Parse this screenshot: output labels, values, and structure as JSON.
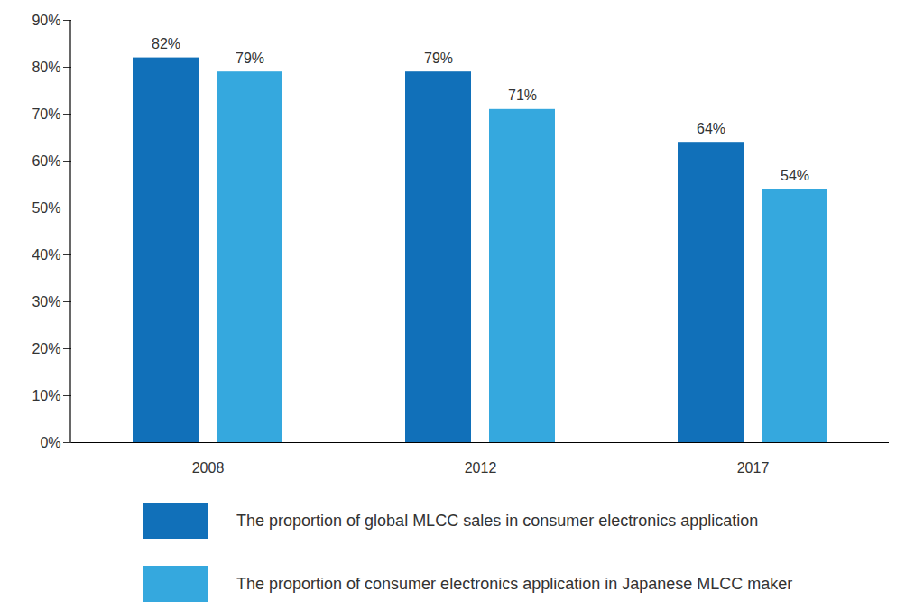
{
  "chart_data": {
    "type": "bar",
    "categories": [
      "2008",
      "2012",
      "2017"
    ],
    "series": [
      {
        "name": "The proportion of global MLCC sales in consumer electronics application",
        "color": "#1170b9",
        "values": [
          82,
          79,
          64
        ],
        "value_labels": [
          "82%",
          "79%",
          "64%"
        ]
      },
      {
        "name": "The proportion of consumer electronics application in Japanese MLCC maker",
        "color": "#35a8de",
        "values": [
          79,
          71,
          54
        ],
        "value_labels": [
          "79%",
          "71%",
          "54%"
        ]
      }
    ],
    "ylim": [
      0,
      90
    ],
    "yticks": [
      {
        "value": 0,
        "label": "0%"
      },
      {
        "value": 10,
        "label": "10%"
      },
      {
        "value": 20,
        "label": "20%"
      },
      {
        "value": 30,
        "label": "30%"
      },
      {
        "value": 40,
        "label": "40%"
      },
      {
        "value": 50,
        "label": "50%"
      },
      {
        "value": 60,
        "label": "60%"
      },
      {
        "value": 70,
        "label": "70%"
      },
      {
        "value": 80,
        "label": "80%"
      },
      {
        "value": 90,
        "label": "90%"
      }
    ],
    "grid": false,
    "legend": "bottom",
    "data_labels": true
  }
}
